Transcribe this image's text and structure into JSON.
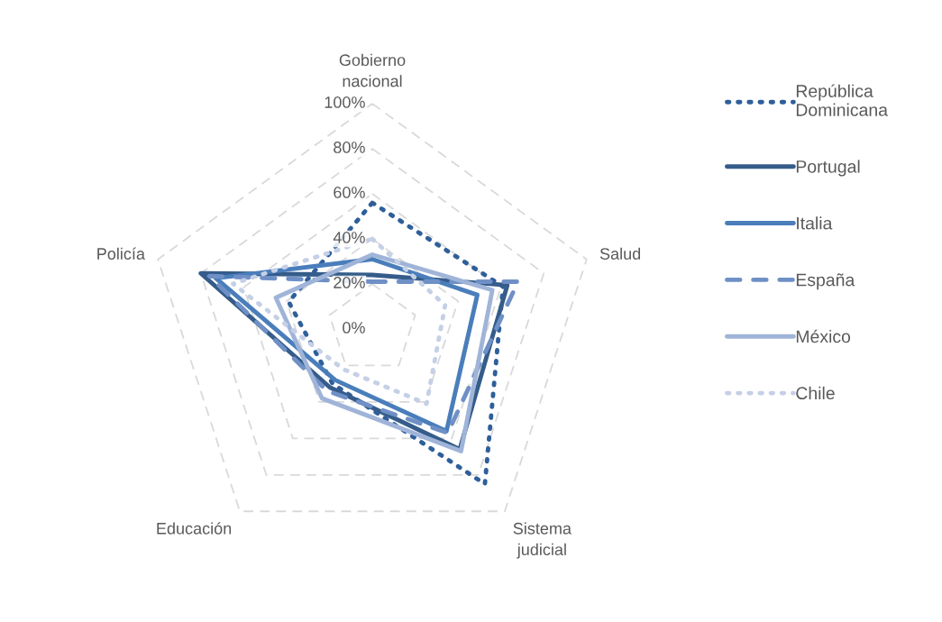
{
  "chart_data": {
    "type": "radar",
    "categories": [
      "Gobierno nacional",
      "Salud",
      "Sistema judicial",
      "Educación",
      "Policía"
    ],
    "ylim": [
      0,
      100
    ],
    "yticks": [
      {
        "value": 0,
        "label": "0%"
      },
      {
        "value": 20,
        "label": "20%"
      },
      {
        "value": 40,
        "label": "40%"
      },
      {
        "value": 60,
        "label": "60%"
      },
      {
        "value": 80,
        "label": "80%"
      },
      {
        "value": 100,
        "label": "100%"
      }
    ],
    "grid": true,
    "legend": "right",
    "marker": "none",
    "series": [
      {
        "name": "República Dominicana",
        "color": "#2e5f9a",
        "line_style": "dotted",
        "values": [
          56,
          61,
          85,
          30,
          39
        ]
      },
      {
        "name": "Portugal",
        "color": "#355c8a",
        "line_style": "solid",
        "values": [
          24,
          63,
          66,
          32,
          80
        ]
      },
      {
        "name": "Italia",
        "color": "#4a7ebb",
        "line_style": "solid",
        "values": [
          31,
          49,
          56,
          28,
          73
        ]
      },
      {
        "name": "España",
        "color": "#6f90c6",
        "line_style": "dashed",
        "values": [
          21,
          68,
          57,
          34,
          76
        ]
      },
      {
        "name": "México",
        "color": "#9fb4d8",
        "line_style": "solid",
        "values": [
          33,
          56,
          67,
          38,
          45
        ]
      },
      {
        "name": "Chile",
        "color": "#c5d0e6",
        "line_style": "dotted",
        "values": [
          40,
          34,
          41,
          22,
          65
        ]
      }
    ]
  }
}
